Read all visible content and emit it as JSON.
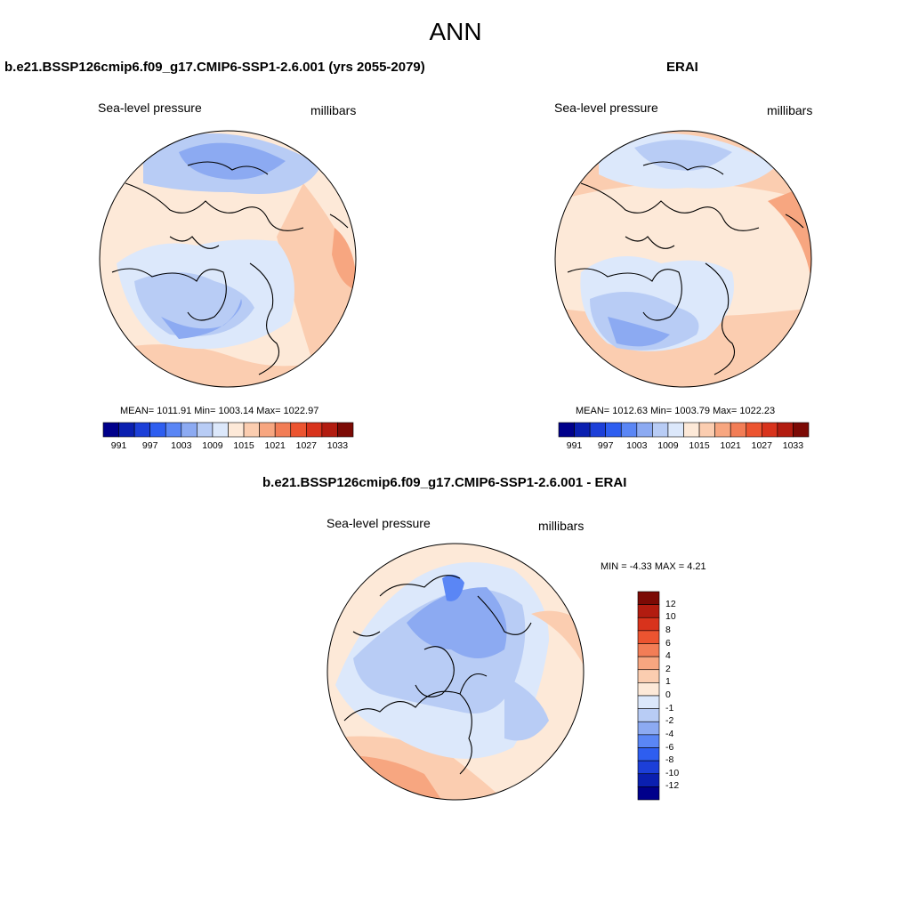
{
  "main_title": "ANN",
  "panels": [
    {
      "title": "b.e21.BSSP126cmip6.f09_g17.CMIP6-SSP1-2.6.001 (yrs 2055-2079)",
      "left_label": "Sea-level pressure",
      "right_label": "millibars",
      "stats": "MEAN= 1011.91  Min= 1003.14  Max= 1022.97"
    },
    {
      "title": "ERAI",
      "left_label": "Sea-level pressure",
      "right_label": "millibars",
      "stats": "MEAN= 1012.63  Min= 1003.79  Max= 1022.23"
    },
    {
      "title": "b.e21.BSSP126cmip6.f09_g17.CMIP6-SSP1-2.6.001 - ERAI",
      "left_label": "Sea-level pressure",
      "right_label": "millibars",
      "stats": "MIN =  -4.33 MAX =   4.21"
    }
  ],
  "colorbar_abs": {
    "labels": [
      "991",
      "997",
      "1003",
      "1009",
      "1015",
      "1021",
      "1027",
      "1033"
    ],
    "colors": [
      "#00008b",
      "#0a1fb0",
      "#1c3fd8",
      "#2e5ef0",
      "#5a86f5",
      "#8caaf2",
      "#b8ccf5",
      "#dce8fb",
      "#fde9d8",
      "#fbcdb0",
      "#f7a680",
      "#f27d56",
      "#ec5430",
      "#d8331c",
      "#b21c10",
      "#7c0a05"
    ]
  },
  "colorbar_diff": {
    "labels": [
      "12",
      "10",
      "8",
      "6",
      "4",
      "2",
      "1",
      "0",
      "-1",
      "-2",
      "-4",
      "-6",
      "-8",
      "-10",
      "-12"
    ],
    "colors": [
      "#7c0a05",
      "#b21c10",
      "#d8331c",
      "#ec5430",
      "#f27d56",
      "#f7a680",
      "#fbcdb0",
      "#fde9d8",
      "#dce8fb",
      "#b8ccf5",
      "#8caaf2",
      "#5a86f5",
      "#2e5ef0",
      "#1c3fd8",
      "#0a1fb0",
      "#00008b"
    ]
  }
}
